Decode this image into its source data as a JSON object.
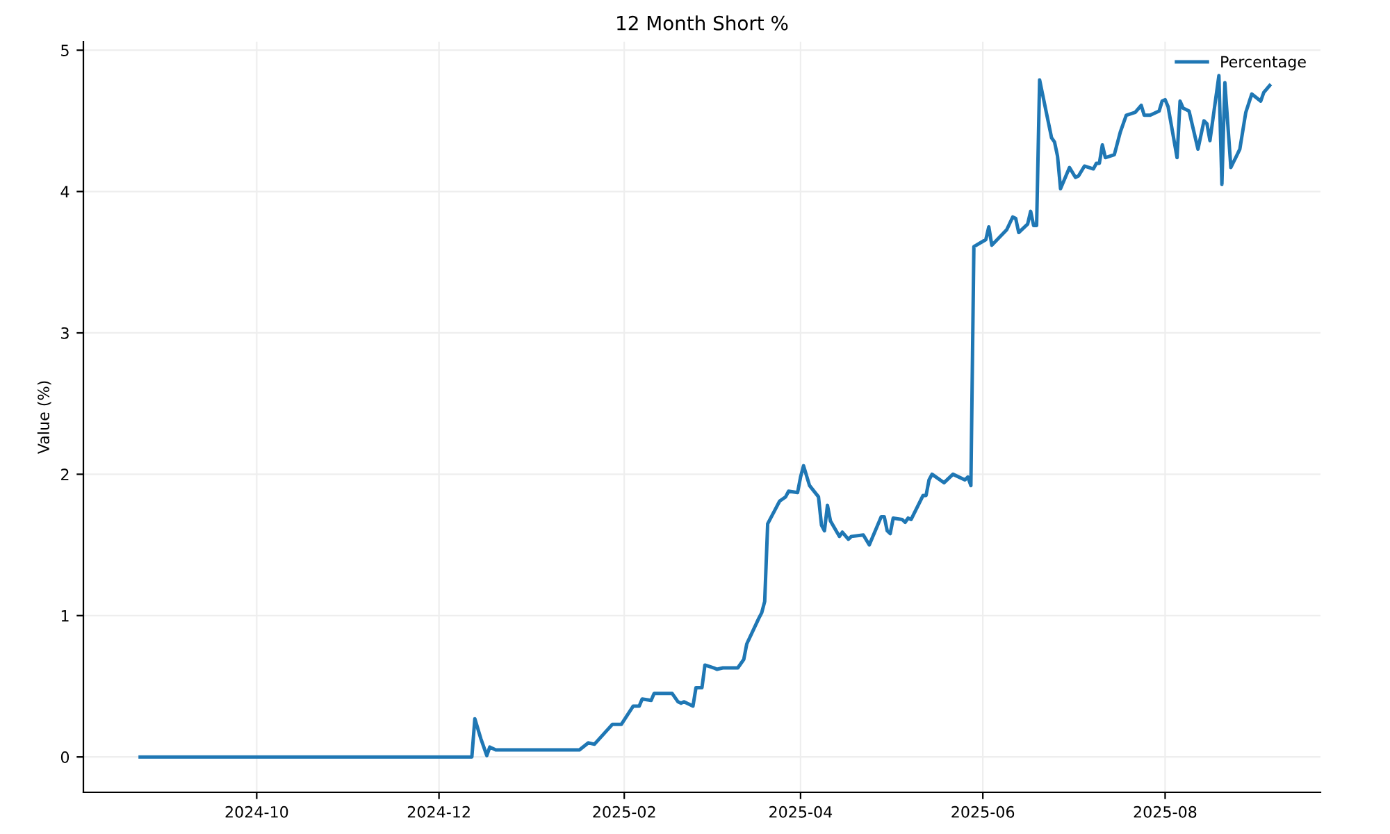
{
  "chart_data": {
    "type": "line",
    "title": "12 Month Short %",
    "ylabel": "Value (%)",
    "x": [
      "2024-08-23",
      "2024-12-12",
      "2024-12-13",
      "2024-12-15",
      "2024-12-17",
      "2024-12-18",
      "2024-12-20",
      "2025-01-17",
      "2025-01-20",
      "2025-01-22",
      "2025-01-28",
      "2025-01-31",
      "2025-02-04",
      "2025-02-06",
      "2025-02-07",
      "2025-02-10",
      "2025-02-11",
      "2025-02-17",
      "2025-02-19",
      "2025-02-20",
      "2025-02-21",
      "2025-02-24",
      "2025-02-25",
      "2025-02-27",
      "2025-02-28",
      "2025-03-03",
      "2025-03-04",
      "2025-03-06",
      "2025-03-11",
      "2025-03-13",
      "2025-03-14",
      "2025-03-18",
      "2025-03-19",
      "2025-03-20",
      "2025-03-21",
      "2025-03-24",
      "2025-03-25",
      "2025-03-27",
      "2025-03-28",
      "2025-03-31",
      "2025-04-01",
      "2025-04-02",
      "2025-04-04",
      "2025-04-07",
      "2025-04-08",
      "2025-04-09",
      "2025-04-10",
      "2025-04-11",
      "2025-04-14",
      "2025-04-15",
      "2025-04-17",
      "2025-04-18",
      "2025-04-22",
      "2025-04-24",
      "2025-04-28",
      "2025-04-29",
      "2025-04-30",
      "2025-05-01",
      "2025-05-02",
      "2025-05-05",
      "2025-05-06",
      "2025-05-07",
      "2025-05-08",
      "2025-05-12",
      "2025-05-13",
      "2025-05-14",
      "2025-05-15",
      "2025-05-19",
      "2025-05-22",
      "2025-05-26",
      "2025-05-27",
      "2025-05-28",
      "2025-05-29",
      "2025-06-02",
      "2025-06-03",
      "2025-06-04",
      "2025-06-09",
      "2025-06-11",
      "2025-06-12",
      "2025-06-13",
      "2025-06-16",
      "2025-06-17",
      "2025-06-18",
      "2025-06-19",
      "2025-06-20",
      "2025-06-24",
      "2025-06-25",
      "2025-06-26",
      "2025-06-27",
      "2025-06-30",
      "2025-07-02",
      "2025-07-03",
      "2025-07-05",
      "2025-07-08",
      "2025-07-09",
      "2025-07-10",
      "2025-07-11",
      "2025-07-12",
      "2025-07-15",
      "2025-07-17",
      "2025-07-19",
      "2025-07-22",
      "2025-07-24",
      "2025-07-25",
      "2025-07-27",
      "2025-07-30",
      "2025-07-31",
      "2025-08-01",
      "2025-08-02",
      "2025-08-05",
      "2025-08-06",
      "2025-08-07",
      "2025-08-09",
      "2025-08-12",
      "2025-08-14",
      "2025-08-15",
      "2025-08-16",
      "2025-08-19",
      "2025-08-20",
      "2025-08-21",
      "2025-08-23",
      "2025-08-26",
      "2025-08-28",
      "2025-08-30",
      "2025-09-02",
      "2025-09-03",
      "2025-09-05"
    ],
    "series": [
      {
        "name": "Percentage",
        "color": "#1f77b4",
        "values": [
          0,
          0,
          0.27,
          0.13,
          0.01,
          0.07,
          0.05,
          0.05,
          0.1,
          0.09,
          0.23,
          0.23,
          0.36,
          0.36,
          0.41,
          0.4,
          0.45,
          0.45,
          0.39,
          0.38,
          0.39,
          0.36,
          0.49,
          0.49,
          0.65,
          0.63,
          0.62,
          0.63,
          0.63,
          0.69,
          0.8,
          0.98,
          1.02,
          1.1,
          1.65,
          1.77,
          1.81,
          1.84,
          1.88,
          1.87,
          1.98,
          2.06,
          1.92,
          1.84,
          1.64,
          1.6,
          1.78,
          1.67,
          1.56,
          1.59,
          1.54,
          1.56,
          1.57,
          1.5,
          1.7,
          1.7,
          1.6,
          1.58,
          1.69,
          1.68,
          1.66,
          1.69,
          1.68,
          1.85,
          1.85,
          1.96,
          2.0,
          1.94,
          2.0,
          1.96,
          1.98,
          1.92,
          3.61,
          3.66,
          3.75,
          3.62,
          3.73,
          3.82,
          3.81,
          3.71,
          3.77,
          3.86,
          3.76,
          3.76,
          4.79,
          4.38,
          4.35,
          4.25,
          4.02,
          4.17,
          4.1,
          4.11,
          4.18,
          4.16,
          4.2,
          4.2,
          4.33,
          4.24,
          4.26,
          4.42,
          4.54,
          4.56,
          4.61,
          4.54,
          4.54,
          4.57,
          4.64,
          4.65,
          4.6,
          4.24,
          4.64,
          4.59,
          4.57,
          4.3,
          4.5,
          4.48,
          4.36,
          4.82,
          4.05,
          4.77,
          4.17,
          4.3,
          4.56,
          4.69,
          4.64,
          4.7,
          4.75
        ]
      }
    ],
    "xlim": [
      "2024-08-04",
      "2025-09-22"
    ],
    "xticks": [
      "2024-10",
      "2024-12",
      "2025-02",
      "2025-04",
      "2025-06",
      "2025-08"
    ],
    "ylim": [
      -0.25,
      5.06
    ],
    "yticks": [
      0,
      1,
      2,
      3,
      4,
      5
    ],
    "grid": true,
    "legend": "top right"
  }
}
